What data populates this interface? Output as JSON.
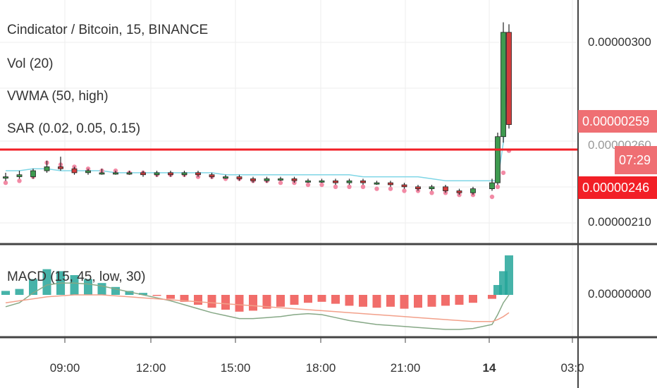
{
  "legend": {
    "title": "Cindicator / Bitcoin, 15, BINANCE",
    "vol": "Vol (20)",
    "vwma": "VWMA (50, high)",
    "sar": "SAR (0.02, 0.05, 0.15)",
    "macd": "MACD (15, 45, low, 30)"
  },
  "badges": {
    "current_price": "0.00000259",
    "sar_price": "0.00000246",
    "countdown": "07:29"
  },
  "colors": {
    "up": "#26a69a",
    "down": "#ef5350",
    "candle_up": "#3f9a4f",
    "candle_down": "#d23c3c",
    "sar": "#f28aa5",
    "vwma": "#7fd6e6",
    "hline": "#f21f26",
    "macd_line": "#86a886",
    "signal_line": "#f2a08a"
  },
  "chart_data": {
    "type": "candlestick",
    "price_axis": {
      "ticks": [
        "0.00000300",
        "0.00000210"
      ],
      "tick_values": [
        3e-06,
        2.1e-06
      ],
      "partially_hidden_tick": "0.00000260"
    },
    "time_axis": {
      "ticks": [
        "09:00",
        "12:00",
        "15:00",
        "18:00",
        "21:00",
        "14",
        "03:0"
      ],
      "bold_ticks": [
        "14"
      ]
    },
    "horizontal_line": {
      "price": 2.49e-06
    },
    "candles": [
      {
        "time": "06:45",
        "open": 2.33,
        "high": 2.35,
        "low": 2.31,
        "close": 2.33
      },
      {
        "time": "07:15",
        "open": 2.33,
        "high": 2.36,
        "low": 2.32,
        "close": 2.34
      },
      {
        "time": "07:45",
        "open": 2.33,
        "high": 2.37,
        "low": 2.32,
        "close": 2.36
      },
      {
        "time": "08:15",
        "open": 2.36,
        "high": 2.41,
        "low": 2.35,
        "close": 2.38
      },
      {
        "time": "08:45",
        "open": 2.38,
        "high": 2.43,
        "low": 2.36,
        "close": 2.37
      },
      {
        "time": "09:15",
        "open": 2.37,
        "high": 2.38,
        "low": 2.34,
        "close": 2.35
      },
      {
        "time": "09:45",
        "open": 2.35,
        "high": 2.37,
        "low": 2.34,
        "close": 2.36
      },
      {
        "time": "10:15",
        "open": 2.35,
        "high": 2.37,
        "low": 2.34,
        "close": 2.35
      },
      {
        "time": "10:45",
        "open": 2.35,
        "high": 2.36,
        "low": 2.34,
        "close": 2.35
      },
      {
        "time": "11:15",
        "open": 2.35,
        "high": 2.36,
        "low": 2.34,
        "close": 2.35
      },
      {
        "time": "11:45",
        "open": 2.35,
        "high": 2.36,
        "low": 2.33,
        "close": 2.34
      },
      {
        "time": "12:15",
        "open": 2.34,
        "high": 2.36,
        "low": 2.33,
        "close": 2.35
      },
      {
        "time": "12:45",
        "open": 2.35,
        "high": 2.36,
        "low": 2.33,
        "close": 2.34
      },
      {
        "time": "13:15",
        "open": 2.34,
        "high": 2.36,
        "low": 2.33,
        "close": 2.35
      },
      {
        "time": "13:45",
        "open": 2.35,
        "high": 2.36,
        "low": 2.33,
        "close": 2.34
      },
      {
        "time": "14:15",
        "open": 2.34,
        "high": 2.35,
        "low": 2.32,
        "close": 2.33
      },
      {
        "time": "14:45",
        "open": 2.33,
        "high": 2.34,
        "low": 2.32,
        "close": 2.33
      },
      {
        "time": "15:15",
        "open": 2.33,
        "high": 2.34,
        "low": 2.31,
        "close": 2.32
      },
      {
        "time": "15:45",
        "open": 2.32,
        "high": 2.33,
        "low": 2.3,
        "close": 2.31
      },
      {
        "time": "16:15",
        "open": 2.31,
        "high": 2.33,
        "low": 2.3,
        "close": 2.32
      },
      {
        "time": "16:45",
        "open": 2.32,
        "high": 2.33,
        "low": 2.31,
        "close": 2.32
      },
      {
        "time": "17:15",
        "open": 2.32,
        "high": 2.33,
        "low": 2.3,
        "close": 2.31
      },
      {
        "time": "17:45",
        "open": 2.31,
        "high": 2.32,
        "low": 2.3,
        "close": 2.31
      },
      {
        "time": "18:15",
        "open": 2.31,
        "high": 2.32,
        "low": 2.3,
        "close": 2.31
      },
      {
        "time": "18:45",
        "open": 2.31,
        "high": 2.32,
        "low": 2.29,
        "close": 2.3
      },
      {
        "time": "19:15",
        "open": 2.3,
        "high": 2.32,
        "low": 2.29,
        "close": 2.31
      },
      {
        "time": "19:45",
        "open": 2.31,
        "high": 2.32,
        "low": 2.29,
        "close": 2.3
      },
      {
        "time": "20:15",
        "open": 2.3,
        "high": 2.31,
        "low": 2.29,
        "close": 2.3
      },
      {
        "time": "20:45",
        "open": 2.3,
        "high": 2.31,
        "low": 2.28,
        "close": 2.29
      },
      {
        "time": "21:15",
        "open": 2.29,
        "high": 2.3,
        "low": 2.27,
        "close": 2.28
      },
      {
        "time": "21:45",
        "open": 2.28,
        "high": 2.29,
        "low": 2.26,
        "close": 2.27
      },
      {
        "time": "22:15",
        "open": 2.27,
        "high": 2.29,
        "low": 2.26,
        "close": 2.28
      },
      {
        "time": "22:45",
        "open": 2.28,
        "high": 2.29,
        "low": 2.25,
        "close": 2.26
      },
      {
        "time": "23:15",
        "open": 2.26,
        "high": 2.27,
        "low": 2.24,
        "close": 2.25
      },
      {
        "time": "23:45",
        "open": 2.25,
        "high": 2.28,
        "low": 2.24,
        "close": 2.27
      },
      {
        "time": "00:00",
        "open": 2.27,
        "high": 2.32,
        "low": 2.26,
        "close": 2.3
      },
      {
        "time": "00:15",
        "open": 2.3,
        "high": 2.55,
        "low": 2.29,
        "close": 2.53
      },
      {
        "time": "00:30",
        "open": 2.53,
        "high": 3.1,
        "low": 2.5,
        "close": 3.05
      },
      {
        "time": "00:45",
        "open": 3.05,
        "high": 3.09,
        "low": 2.57,
        "close": 2.59
      }
    ],
    "sar": [
      2.3,
      2.31,
      2.33,
      2.4,
      2.39,
      2.38,
      2.37,
      2.36,
      2.36,
      2.35,
      2.35,
      2.34,
      2.34,
      2.34,
      2.33,
      2.33,
      2.32,
      2.32,
      2.31,
      2.31,
      2.3,
      2.3,
      2.29,
      2.29,
      2.28,
      2.28,
      2.28,
      2.27,
      2.27,
      2.26,
      2.26,
      2.25,
      2.25,
      2.24,
      2.24,
      2.23,
      2.28,
      2.35,
      2.46
    ],
    "vwma": [
      2.36,
      2.36,
      2.37,
      2.37,
      2.36,
      2.36,
      2.36,
      2.36,
      2.35,
      2.35,
      2.35,
      2.35,
      2.35,
      2.35,
      2.35,
      2.35,
      2.34,
      2.34,
      2.34,
      2.34,
      2.34,
      2.34,
      2.34,
      2.34,
      2.34,
      2.34,
      2.33,
      2.33,
      2.33,
      2.33,
      2.33,
      2.32,
      2.31,
      2.31,
      2.31,
      2.31,
      2.31,
      2.5,
      2.95
    ],
    "macd": {
      "axis_tick": "0.00000000",
      "histogram": [
        0.004,
        0.006,
        0.016,
        0.026,
        0.024,
        0.02,
        0.016,
        0.012,
        0.008,
        0.004,
        0.002,
        -0.001,
        -0.004,
        -0.007,
        -0.01,
        -0.013,
        -0.015,
        -0.017,
        -0.016,
        -0.014,
        -0.012,
        -0.01,
        -0.008,
        -0.007,
        -0.009,
        -0.011,
        -0.012,
        -0.013,
        -0.012,
        -0.014,
        -0.013,
        -0.012,
        -0.011,
        -0.01,
        -0.008,
        -0.004,
        0.01,
        0.024,
        0.04
      ],
      "macd_line": [
        -0.012,
        -0.008,
        0.002,
        0.01,
        0.012,
        0.012,
        0.011,
        0.009,
        0.006,
        0.003,
        0.0,
        -0.003,
        -0.006,
        -0.01,
        -0.014,
        -0.018,
        -0.021,
        -0.024,
        -0.024,
        -0.023,
        -0.022,
        -0.02,
        -0.019,
        -0.02,
        -0.023,
        -0.026,
        -0.028,
        -0.03,
        -0.031,
        -0.032,
        -0.033,
        -0.034,
        -0.035,
        -0.035,
        -0.034,
        -0.03,
        -0.02,
        -0.008,
        0.0
      ],
      "signal_line": [
        -0.008,
        -0.006,
        -0.004,
        -0.002,
        -0.001,
        0.0,
        0.0,
        0.0,
        -0.001,
        -0.002,
        -0.003,
        -0.004,
        -0.005,
        -0.006,
        -0.007,
        -0.008,
        -0.009,
        -0.01,
        -0.011,
        -0.012,
        -0.013,
        -0.014,
        -0.015,
        -0.016,
        -0.017,
        -0.018,
        -0.019,
        -0.02,
        -0.021,
        -0.022,
        -0.023,
        -0.024,
        -0.025,
        -0.026,
        -0.027,
        -0.027,
        -0.025,
        -0.022,
        -0.018
      ]
    },
    "grid": true
  }
}
